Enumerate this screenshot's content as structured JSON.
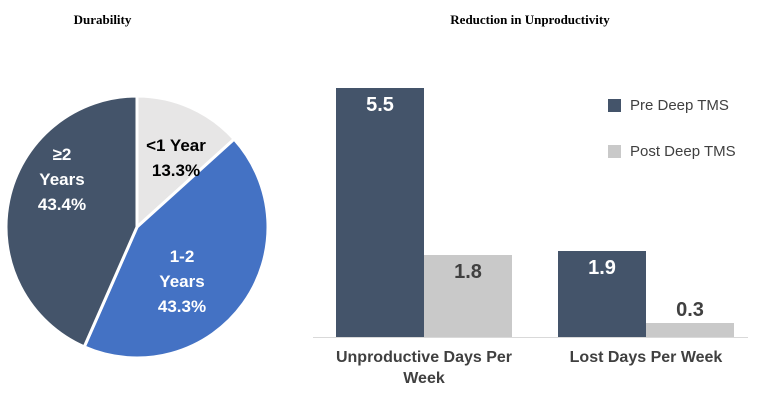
{
  "chart_data": [
    {
      "type": "pie",
      "title": "Durability",
      "start_angle_deg": -90,
      "direction": "clockwise",
      "slices": [
        {
          "label": "<1 Year",
          "pct_label": "13.3%",
          "value": 13.3,
          "color": "#E7E6E6",
          "text_color": "#000000"
        },
        {
          "label": "1-2 Years",
          "pct_label": "43.3%",
          "value": 43.3,
          "color": "#4472C4",
          "text_color": "#FFFFFF"
        },
        {
          "label": "≥2 Years",
          "pct_label": "43.4%",
          "value": 43.4,
          "color": "#44546A",
          "text_color": "#FFFFFF"
        }
      ]
    },
    {
      "type": "bar",
      "title": "Reduction in Unproductivity",
      "categories": [
        "Unproductive Days Per Week",
        "Lost Days Per Week"
      ],
      "series": [
        {
          "name": "Pre Deep TMS",
          "color": "#44546A",
          "label_color": "#FFFFFF",
          "values": [
            5.5,
            1.9
          ]
        },
        {
          "name": "Post Deep TMS",
          "color": "#C9C9C9",
          "label_color": "#404040",
          "values": [
            1.8,
            0.3
          ]
        }
      ],
      "ylim": [
        0,
        6
      ],
      "grid": false,
      "legend_position": "right"
    }
  ]
}
